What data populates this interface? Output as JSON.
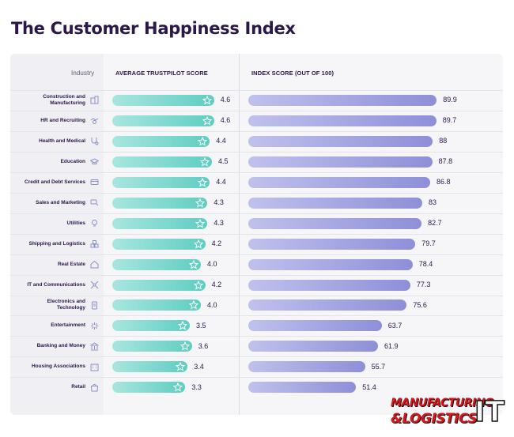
{
  "title": "The Customer Happiness Index",
  "headers": {
    "industry": "Industry",
    "trust": "AVERAGE TRUSTPILOT SCORE",
    "index": "INDEX SCORE (OUT OF 100)"
  },
  "logo": {
    "line1": "MANUFACTURING",
    "line2": "&LOGISTICS",
    "suffix": "IT"
  },
  "colors": {
    "trust_bar": "#5fcdc1",
    "index_bar": "#8e8fd8",
    "title": "#2b1748",
    "logo": "#d9141b"
  },
  "chart_data": {
    "type": "bar",
    "title": "The Customer Happiness Index",
    "categories": [
      "Construction and Manufacturing",
      "HR and Recruiting",
      "Health and Medical",
      "Education",
      "Credit and Debt Services",
      "Sales and Marketing",
      "Utilities",
      "Shipping and Logistics",
      "Real Estate",
      "IT and Communications",
      "Electronics and Technology",
      "Entertainment",
      "Banking and Money",
      "Housing Associations",
      "Retail"
    ],
    "icons": [
      "building-icon",
      "handshake-icon",
      "stethoscope-icon",
      "graduation-cap-icon",
      "credit-card-icon",
      "megaphone-icon",
      "lightbulb-icon",
      "boxes-icon",
      "house-icon",
      "network-icon",
      "device-icon",
      "fireworks-icon",
      "bank-icon",
      "apartment-icon",
      "shopping-bag-icon"
    ],
    "series": [
      {
        "name": "AVERAGE TRUSTPILOT SCORE",
        "values": [
          4.6,
          4.6,
          4.4,
          4.5,
          4.4,
          4.3,
          4.3,
          4.2,
          4.0,
          4.2,
          4.0,
          3.5,
          3.6,
          3.4,
          3.3
        ],
        "labels": [
          "4.6",
          "4.6",
          "4.4",
          "4.5",
          "4.4",
          "4.3",
          "4.3",
          "4.2",
          "4.0",
          "4.2",
          "4.0",
          "3.5",
          "3.6",
          "3.4",
          "3.3"
        ]
      },
      {
        "name": "INDEX SCORE (OUT OF 100)",
        "values": [
          89.9,
          89.7,
          88,
          87.8,
          86.8,
          83,
          82.7,
          79.7,
          78.4,
          77.3,
          75.6,
          63.7,
          61.9,
          55.7,
          51.4
        ],
        "labels": [
          "89.9",
          "89.7",
          "88",
          "87.8",
          "86.8",
          "83",
          "82.7",
          "79.7",
          "78.4",
          "77.3",
          "75.6",
          "63.7",
          "61.9",
          "55.7",
          "51.4"
        ]
      }
    ],
    "ylim_trust": [
      0,
      5
    ],
    "ylim_index": [
      0,
      100
    ],
    "legend": "none",
    "grid": false
  }
}
